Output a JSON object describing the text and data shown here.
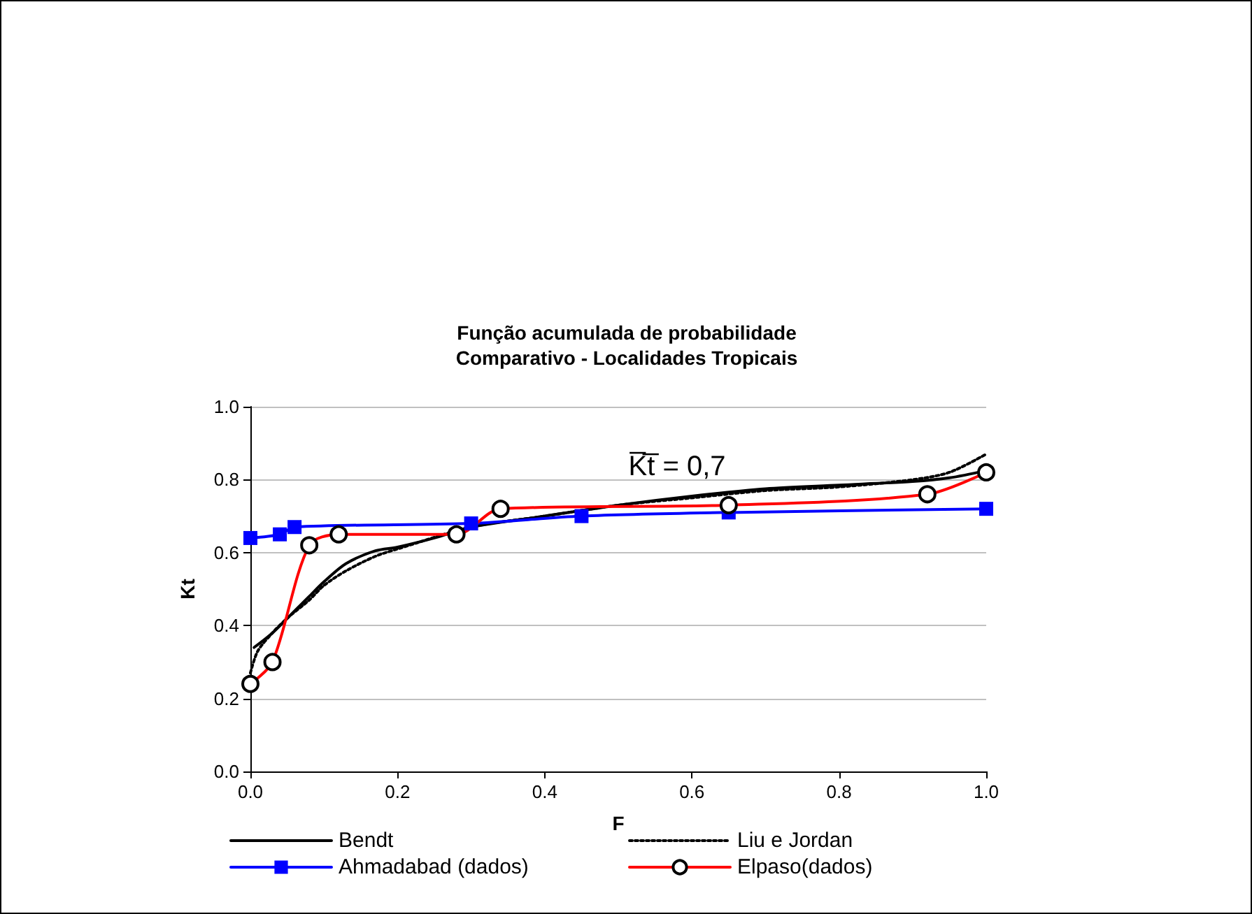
{
  "chart_data": {
    "type": "line",
    "title": "Função acumulada de probabilidade",
    "subtitle": "Comparativo - Localidades Tropicais",
    "xlabel": "F",
    "ylabel": "Kt",
    "xlim": [
      0,
      1
    ],
    "xticks": [
      {
        "value": 0,
        "label": "0.0"
      },
      0.2,
      0.4,
      0.6,
      0.8,
      {
        "value": 1,
        "label": "1.0"
      }
    ],
    "ylim": [
      0,
      1
    ],
    "yticks": [
      {
        "value": 0,
        "label": "0.0"
      },
      0.2,
      0.4,
      0.6,
      0.8,
      {
        "value": 1,
        "label": "1.0"
      }
    ],
    "grid": "y",
    "legend": "bottom",
    "annotations": [
      "K̅t̅ = 0,7"
    ],
    "series": [
      {
        "name": "Bendt",
        "color": "#000000",
        "marker": "none",
        "line_style": "solid",
        "x": [
          0.005,
          0.03,
          0.06,
          0.08,
          0.1,
          0.13,
          0.17,
          0.2,
          0.25,
          0.3,
          0.4,
          0.5,
          0.6,
          0.7,
          0.8,
          0.9,
          0.95,
          1.0
        ],
        "values": [
          0.34,
          0.38,
          0.44,
          0.48,
          0.52,
          0.57,
          0.605,
          0.615,
          0.64,
          0.67,
          0.7,
          0.73,
          0.755,
          0.775,
          0.785,
          0.795,
          0.805,
          0.825
        ]
      },
      {
        "name": "Liu e Jordan",
        "color": "#000000",
        "marker": "none",
        "line_style": "dotted",
        "x": [
          0.0,
          0.01,
          0.03,
          0.05,
          0.08,
          0.1,
          0.13,
          0.17,
          0.2,
          0.3,
          0.4,
          0.5,
          0.6,
          0.7,
          0.8,
          0.9,
          0.95,
          1.0
        ],
        "values": [
          0.27,
          0.33,
          0.38,
          0.42,
          0.47,
          0.51,
          0.55,
          0.59,
          0.61,
          0.67,
          0.7,
          0.73,
          0.75,
          0.77,
          0.78,
          0.8,
          0.82,
          0.87
        ]
      },
      {
        "name": "Ahmadabad (dados)",
        "color": "#0000ff",
        "marker": "square",
        "line_style": "solid",
        "x": [
          0.0,
          0.04,
          0.06,
          0.3,
          0.45,
          0.65,
          1.0
        ],
        "values": [
          0.64,
          0.65,
          0.67,
          0.68,
          0.7,
          0.71,
          0.72
        ]
      },
      {
        "name": "Elpaso(dados)",
        "color": "#ff0000",
        "marker": "circle",
        "line_style": "solid",
        "x": [
          0.0,
          0.03,
          0.08,
          0.12,
          0.28,
          0.34,
          0.65,
          0.92,
          1.0
        ],
        "values": [
          0.24,
          0.3,
          0.62,
          0.65,
          0.65,
          0.72,
          0.73,
          0.76,
          0.82
        ]
      }
    ]
  }
}
